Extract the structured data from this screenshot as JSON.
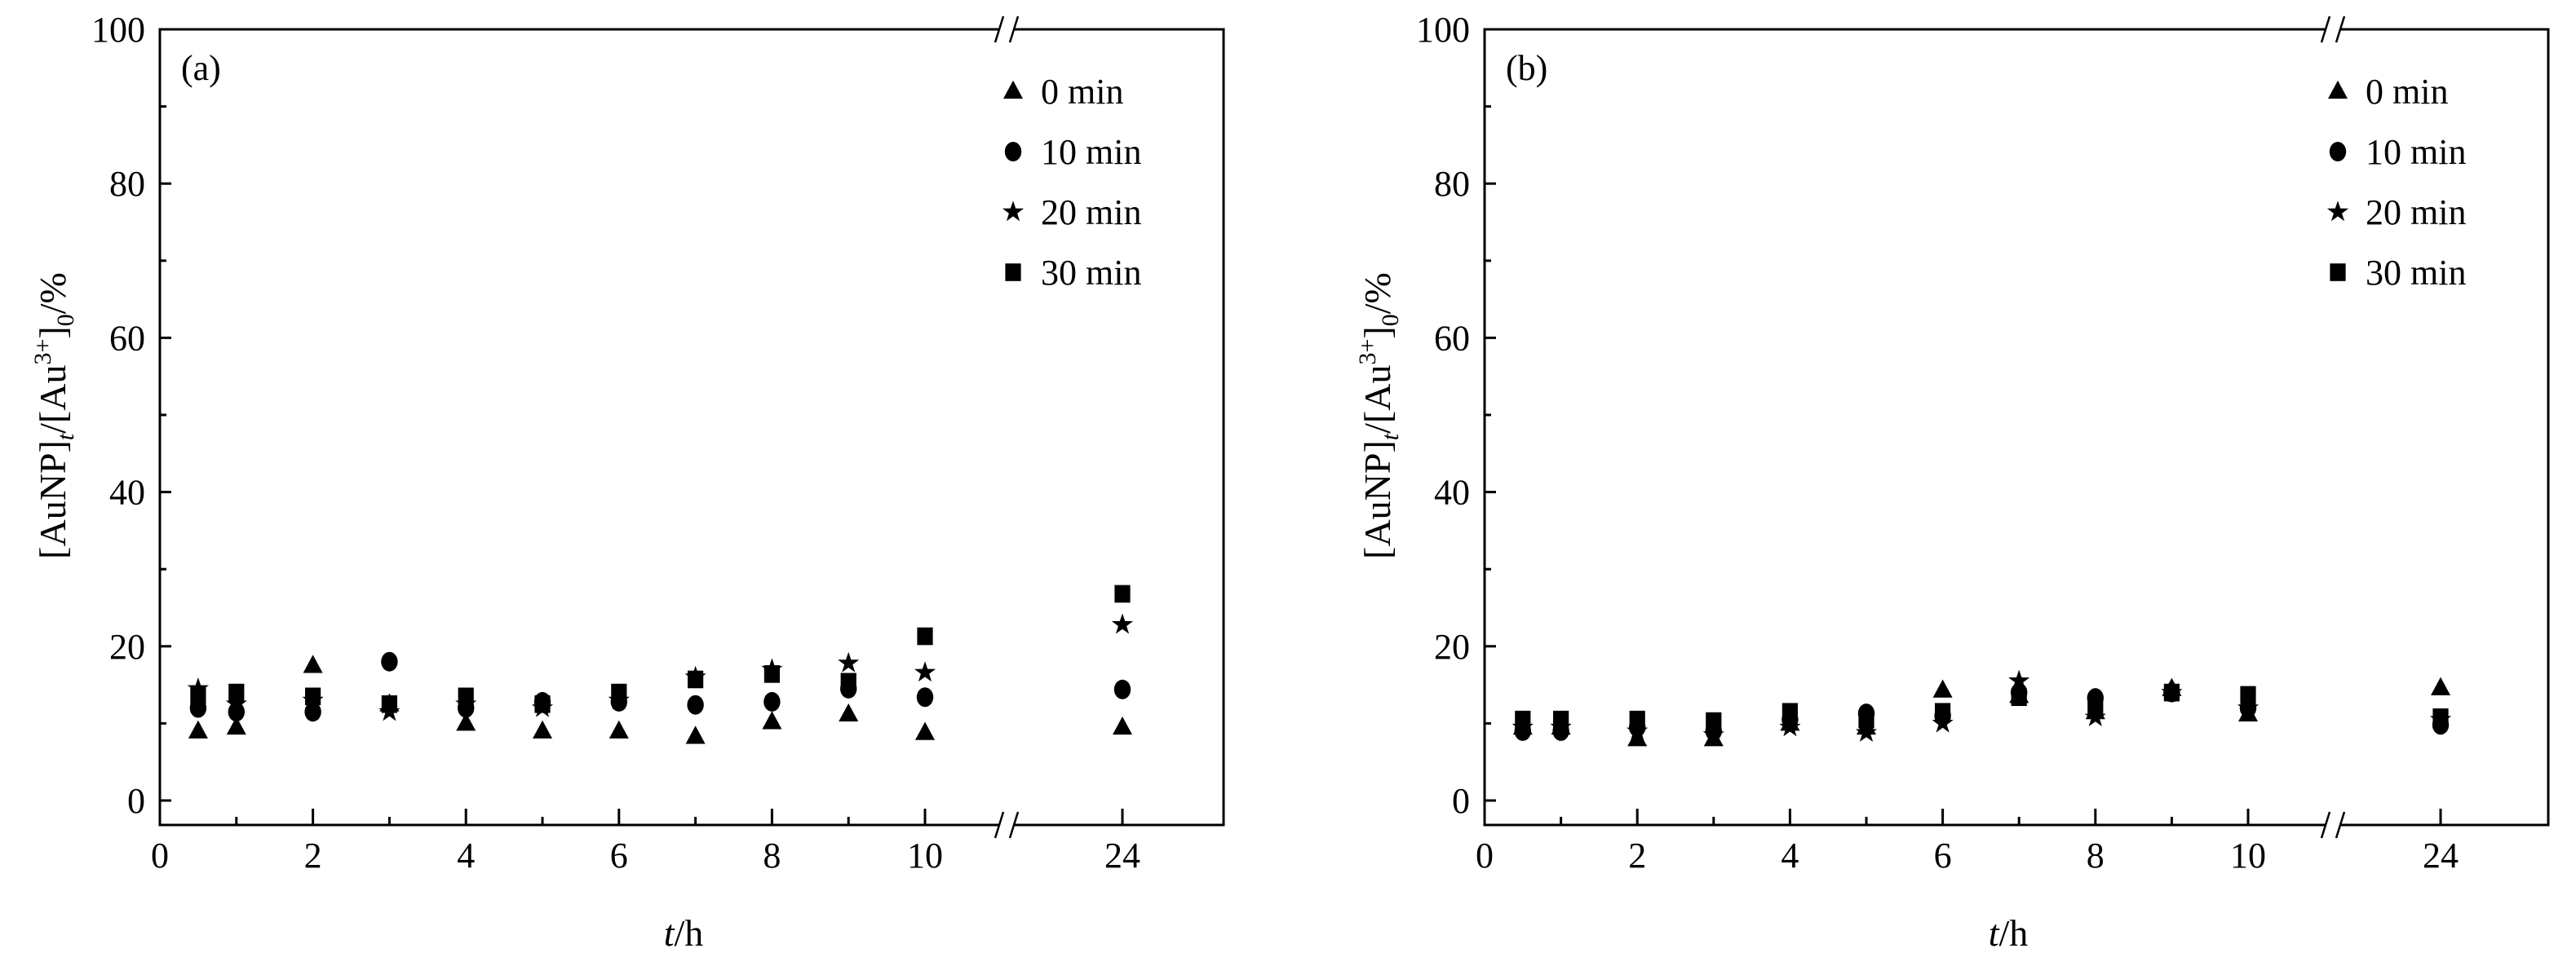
{
  "chart_data": [
    {
      "type": "scatter",
      "panel_label": "(a)",
      "xlabel": {
        "italic": "t",
        "rest": "/h"
      },
      "ylabel": {
        "p1": "[AuNP]",
        "sub1": "t",
        "p2": "/[Au",
        "sup": "3+",
        "p3": "]",
        "sub2": "0",
        "p4": "/%"
      },
      "ylim": [
        0,
        100
      ],
      "yticks": [
        "0",
        "20",
        "40",
        "60",
        "80",
        "100"
      ],
      "xticks": [
        "0",
        "2",
        "4",
        "6",
        "8",
        "10",
        "24"
      ],
      "axis_break": "between 10 and 24",
      "x": [
        0.5,
        1,
        2,
        3,
        4,
        5,
        6,
        7,
        8,
        9,
        10,
        24
      ],
      "legend_position": "top-right",
      "series": [
        {
          "name": "0 min",
          "marker": "triangle",
          "values": [
            9,
            9.5,
            17.5,
            12.5,
            10,
            9,
            9,
            8.3,
            10.2,
            11.2,
            8.8,
            9.5
          ]
        },
        {
          "name": "10 min",
          "marker": "circle",
          "values": [
            12,
            11.5,
            11.5,
            18,
            12,
            12.8,
            12.8,
            12.4,
            12.8,
            14.5,
            13.4,
            14.4
          ]
        },
        {
          "name": "20 min",
          "marker": "star",
          "values": [
            14.5,
            12.5,
            13,
            11.5,
            12.5,
            12,
            13,
            16,
            17,
            17.8,
            16.6,
            22.8
          ]
        },
        {
          "name": "30 min",
          "marker": "square",
          "values": [
            13.5,
            14,
            13.5,
            12.5,
            13.5,
            12.5,
            14,
            15.7,
            16.4,
            15.4,
            21.3,
            26.8
          ]
        }
      ]
    },
    {
      "type": "scatter",
      "panel_label": "(b)",
      "xlabel": {
        "italic": "t",
        "rest": "/h"
      },
      "ylabel": {
        "p1": "[AuNP]",
        "sub1": "t",
        "p2": "/[Au",
        "sup": "3+",
        "p3": "]",
        "sub2": "0",
        "p4": "/%"
      },
      "ylim": [
        0,
        100
      ],
      "yticks": [
        "0",
        "20",
        "40",
        "60",
        "80",
        "100"
      ],
      "xticks": [
        "0",
        "2",
        "4",
        "6",
        "8",
        "10",
        "24"
      ],
      "axis_break": "between 10 and 24",
      "x": [
        0.5,
        1,
        2,
        3,
        4,
        5,
        6,
        7,
        8,
        9,
        10,
        24
      ],
      "legend_position": "top-right",
      "series": [
        {
          "name": "0 min",
          "marker": "triangle",
          "values": [
            9.5,
            9.5,
            8,
            8,
            10,
            9.5,
            14.3,
            13.6,
            11.5,
            14.5,
            11.2,
            14.6
          ]
        },
        {
          "name": "10 min",
          "marker": "circle",
          "values": [
            9,
            9,
            9.5,
            9,
            10.5,
            11.3,
            11,
            14,
            13.3,
            14,
            12,
            9.8
          ]
        },
        {
          "name": "20 min",
          "marker": "star",
          "values": [
            9.5,
            9.5,
            9,
            8.5,
            9.5,
            8.8,
            10,
            15.5,
            10.8,
            14,
            12,
            10.5
          ]
        },
        {
          "name": "30 min",
          "marker": "square",
          "values": [
            10.5,
            10.5,
            10.5,
            10.3,
            11.5,
            10.5,
            11.5,
            13.4,
            12,
            14,
            13.7,
            10.8
          ]
        }
      ]
    }
  ]
}
